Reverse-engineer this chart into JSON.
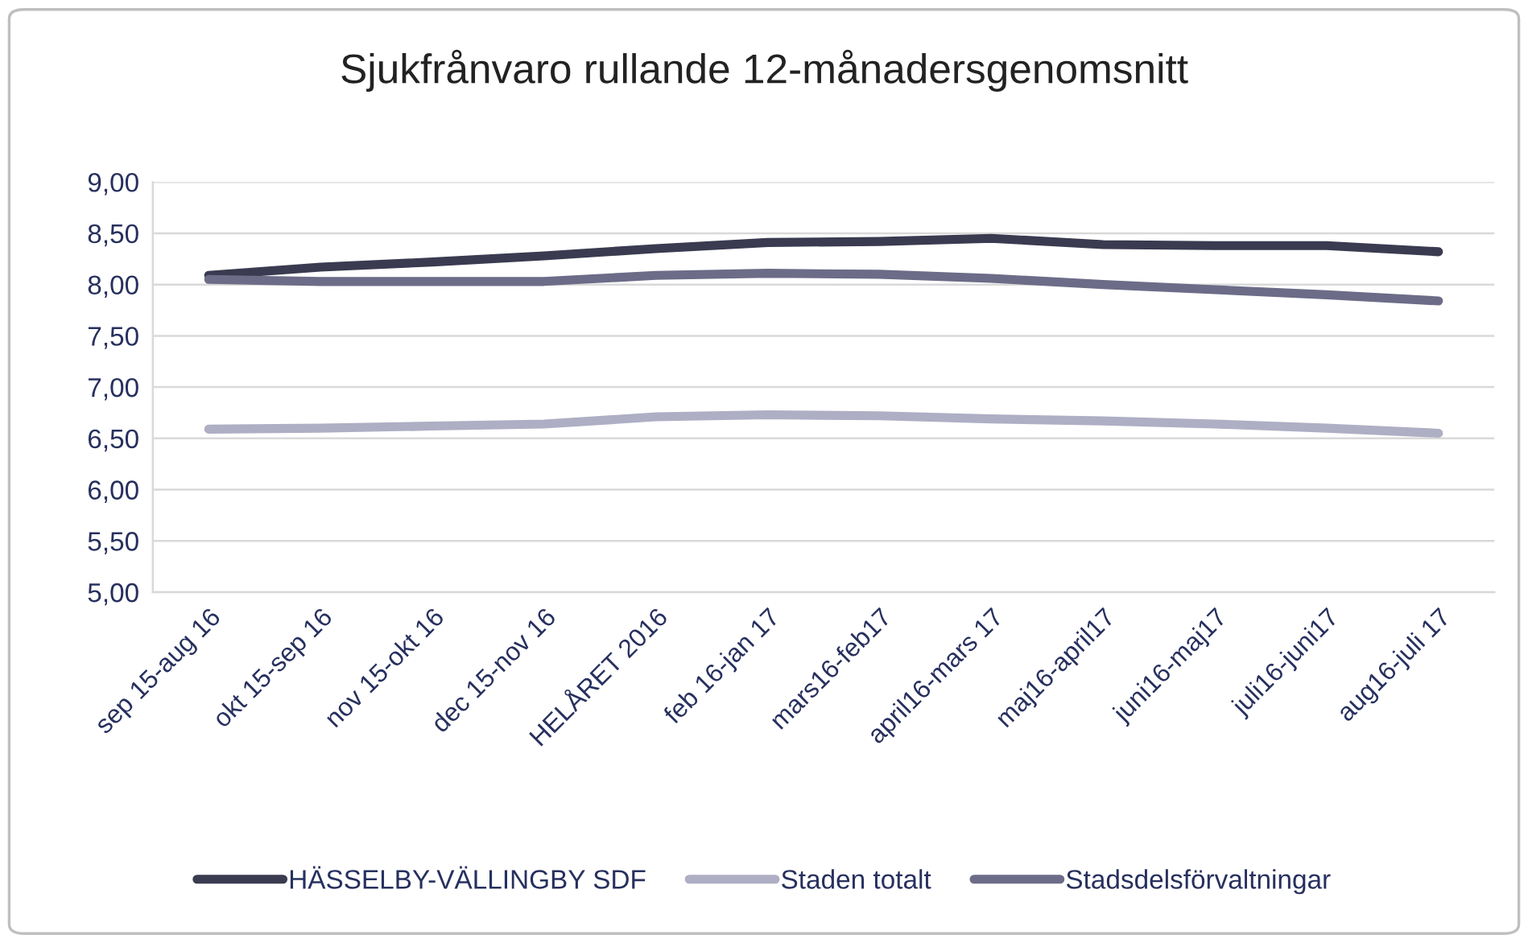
{
  "chart_data": {
    "type": "line",
    "title": "Sjukfrånvaro rullande 12-månadersgenomsnitt",
    "categories": [
      "sep 15-aug 16",
      "okt 15-sep 16",
      "nov 15-okt 16",
      "dec 15-nov 16",
      "HELÅRET 2016",
      "feb 16-jan 17",
      "mars16-feb17",
      "april16-mars 17",
      "maj16-april17",
      "juni16-maj17",
      "juli16-juni17",
      "aug16-juli 17"
    ],
    "series": [
      {
        "name": "HÄSSELBY-VÄLLINGBY SDF",
        "color": "#3a3b50",
        "values": [
          8.09,
          8.17,
          8.22,
          8.28,
          8.35,
          8.41,
          8.42,
          8.45,
          8.39,
          8.38,
          8.38,
          8.32
        ]
      },
      {
        "name": "Staden totalt",
        "color": "#aeaec4",
        "values": [
          6.59,
          6.6,
          6.62,
          6.64,
          6.71,
          6.73,
          6.72,
          6.69,
          6.67,
          6.64,
          6.6,
          6.55
        ]
      },
      {
        "name": "Stadsdelsförvaltningar",
        "color": "#6c6c88",
        "values": [
          8.05,
          8.03,
          8.03,
          8.03,
          8.09,
          8.11,
          8.1,
          8.06,
          8.0,
          7.95,
          7.9,
          7.84
        ]
      }
    ],
    "ylim": [
      5,
      9
    ],
    "yticks": [
      {
        "value": 5,
        "label": "5,00"
      },
      {
        "value": 5.5,
        "label": "5,50"
      },
      {
        "value": 6,
        "label": "6,00"
      },
      {
        "value": 6.5,
        "label": "6,50"
      },
      {
        "value": 7,
        "label": "7,00"
      },
      {
        "value": 7.5,
        "label": "7,50"
      },
      {
        "value": 8,
        "label": "8,00"
      },
      {
        "value": 8.5,
        "label": "8,50"
      },
      {
        "value": 9,
        "label": "9,00"
      }
    ],
    "grid": "y",
    "legend": "bottom",
    "marker": "none",
    "line_style": "solid"
  }
}
